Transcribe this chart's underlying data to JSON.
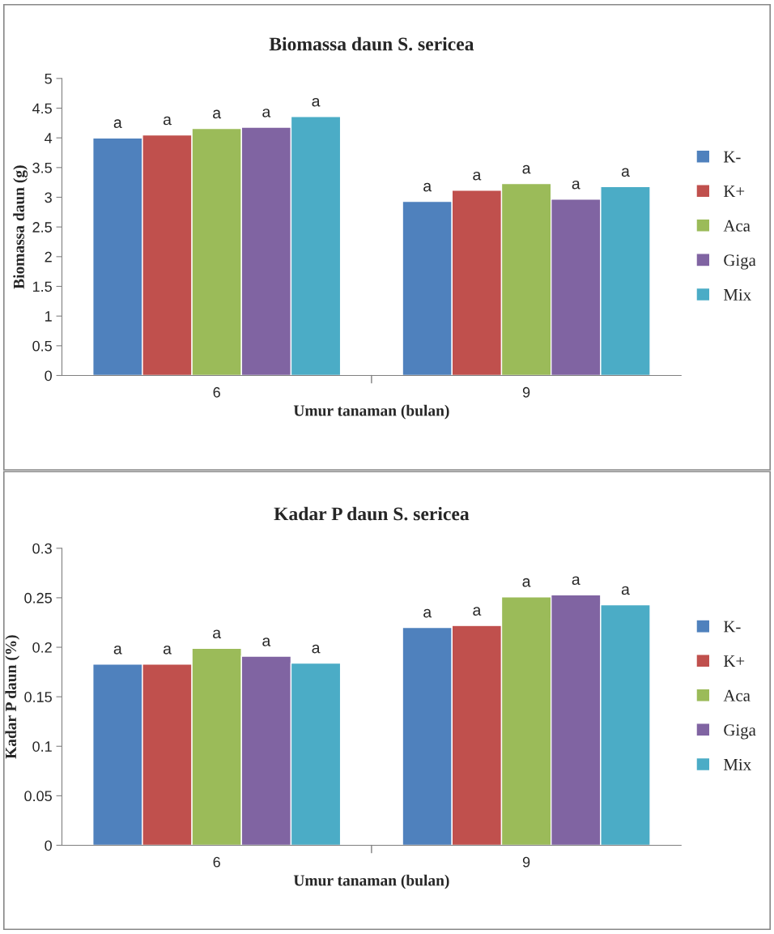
{
  "chart_data": [
    {
      "type": "bar",
      "title": "Biomassa daun S. sericea",
      "xlabel": "Umur tanaman (bulan)",
      "ylabel": "Biomassa daun (g)",
      "categories": [
        "6",
        "9"
      ],
      "series": [
        {
          "name": "K-",
          "color": "#4f81bd",
          "values": [
            4.0,
            2.93
          ],
          "value_labels": [
            "a",
            "a"
          ]
        },
        {
          "name": "K+",
          "color": "#c0504d",
          "values": [
            4.05,
            3.12
          ],
          "value_labels": [
            "a",
            "a"
          ]
        },
        {
          "name": "Aca",
          "color": "#9bbb59",
          "values": [
            4.16,
            3.23
          ],
          "value_labels": [
            "a",
            "a"
          ]
        },
        {
          "name": "Giga",
          "color": "#8064a2",
          "values": [
            4.18,
            2.97
          ],
          "value_labels": [
            "a",
            "a"
          ]
        },
        {
          "name": "Mix",
          "color": "#4bacc6",
          "values": [
            4.36,
            3.18
          ],
          "value_labels": [
            "a",
            "a"
          ]
        }
      ],
      "ylim": [
        0,
        5
      ],
      "yticks": [
        0,
        0.5,
        1,
        1.5,
        2,
        2.5,
        3,
        3.5,
        4,
        4.5,
        5
      ],
      "grid": false,
      "legend": "right"
    },
    {
      "type": "bar",
      "title": "Kadar P daun S. sericea",
      "xlabel": "Umur tanaman (bulan)",
      "ylabel": "Kadar P daun (%)",
      "categories": [
        "6",
        "9"
      ],
      "series": [
        {
          "name": "K-",
          "color": "#4f81bd",
          "values": [
            0.183,
            0.22
          ],
          "value_labels": [
            "a",
            "a"
          ]
        },
        {
          "name": "K+",
          "color": "#c0504d",
          "values": [
            0.183,
            0.222
          ],
          "value_labels": [
            "a",
            "a"
          ]
        },
        {
          "name": "Aca",
          "color": "#9bbb59",
          "values": [
            0.199,
            0.251
          ],
          "value_labels": [
            "a",
            "a"
          ]
        },
        {
          "name": "Giga",
          "color": "#8064a2",
          "values": [
            0.191,
            0.253
          ],
          "value_labels": [
            "a",
            "a"
          ]
        },
        {
          "name": "Mix",
          "color": "#4bacc6",
          "values": [
            0.184,
            0.243
          ],
          "value_labels": [
            "a",
            "a"
          ]
        }
      ],
      "ylim": [
        0,
        0.3
      ],
      "yticks": [
        0,
        0.05,
        0.1,
        0.15,
        0.2,
        0.25,
        0.3
      ],
      "grid": false,
      "legend": "right"
    }
  ]
}
